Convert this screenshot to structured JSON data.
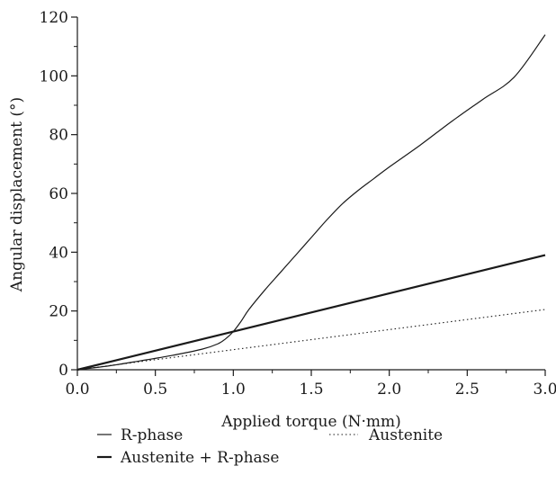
{
  "chart_data": {
    "type": "line",
    "xlabel": "Applied torque (N·mm)",
    "ylabel": "Angular displacement (°)",
    "xlim": [
      0,
      3.0
    ],
    "ylim": [
      0,
      120
    ],
    "x_ticks": [
      "0.0",
      "0.5",
      "1.0",
      "1.5",
      "2.0",
      "2.5",
      "3.0"
    ],
    "y_ticks": [
      "0",
      "20",
      "40",
      "60",
      "80",
      "100",
      "120"
    ],
    "grid": false,
    "legend_position": "bottom",
    "series": [
      {
        "name": "R-phase",
        "style": "thin-solid",
        "color": "#1a1a1a",
        "x": [
          0.0,
          0.2,
          0.4,
          0.6,
          0.8,
          0.9,
          0.95,
          1.0,
          1.05,
          1.1,
          1.2,
          1.3,
          1.4,
          1.5,
          1.6,
          1.7,
          1.8,
          1.9,
          2.0,
          2.2,
          2.4,
          2.6,
          2.8,
          3.0
        ],
        "y": [
          0,
          1.3,
          3.0,
          4.8,
          7.0,
          8.8,
          10.5,
          13.0,
          16.5,
          20.5,
          27.0,
          33.0,
          39.0,
          45.0,
          51.0,
          56.5,
          61.0,
          65.0,
          69.0,
          76.5,
          84.5,
          92.0,
          99.5,
          114.0
        ]
      },
      {
        "name": "Austenite + R-phase",
        "style": "thick-solid",
        "color": "#1a1a1a",
        "x": [
          0.0,
          3.0
        ],
        "y": [
          0,
          39.0
        ]
      },
      {
        "name": "Austenite",
        "style": "dotted",
        "color": "#1a1a1a",
        "x": [
          0.0,
          3.0
        ],
        "y": [
          0,
          20.5
        ]
      }
    ]
  }
}
